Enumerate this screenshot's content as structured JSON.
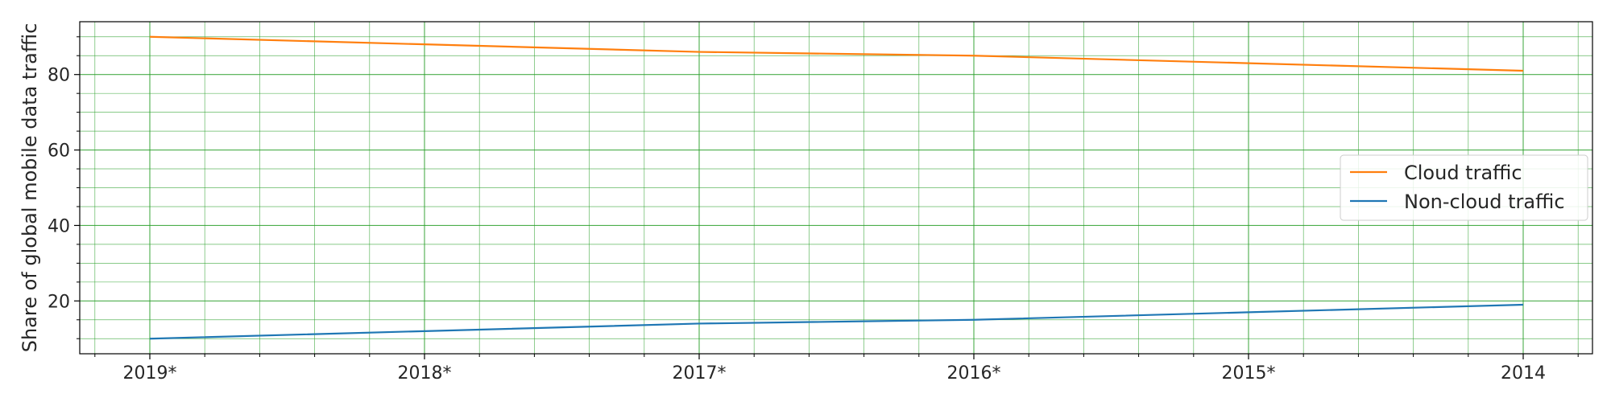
{
  "chart_data": {
    "type": "line",
    "categories": [
      "2019*",
      "2018*",
      "2017*",
      "2016*",
      "2015*",
      "2014"
    ],
    "series": [
      {
        "name": "Cloud traffic",
        "color": "#ff7f0e",
        "values": [
          90,
          88,
          86,
          85,
          83,
          81
        ]
      },
      {
        "name": "Non-cloud traffic",
        "color": "#1f77b4",
        "values": [
          10,
          12,
          14,
          15,
          17,
          19
        ]
      }
    ],
    "title": "",
    "xlabel": "",
    "ylabel": "Share of global mobile data traffic",
    "ylim": [
      6,
      94
    ],
    "y_major_ticks": [
      20,
      40,
      60,
      80
    ],
    "grid": true,
    "grid_color": "#2ca02c",
    "legend_placement": "center-right",
    "legend_order": [
      "Cloud traffic",
      "Non-cloud traffic"
    ]
  }
}
